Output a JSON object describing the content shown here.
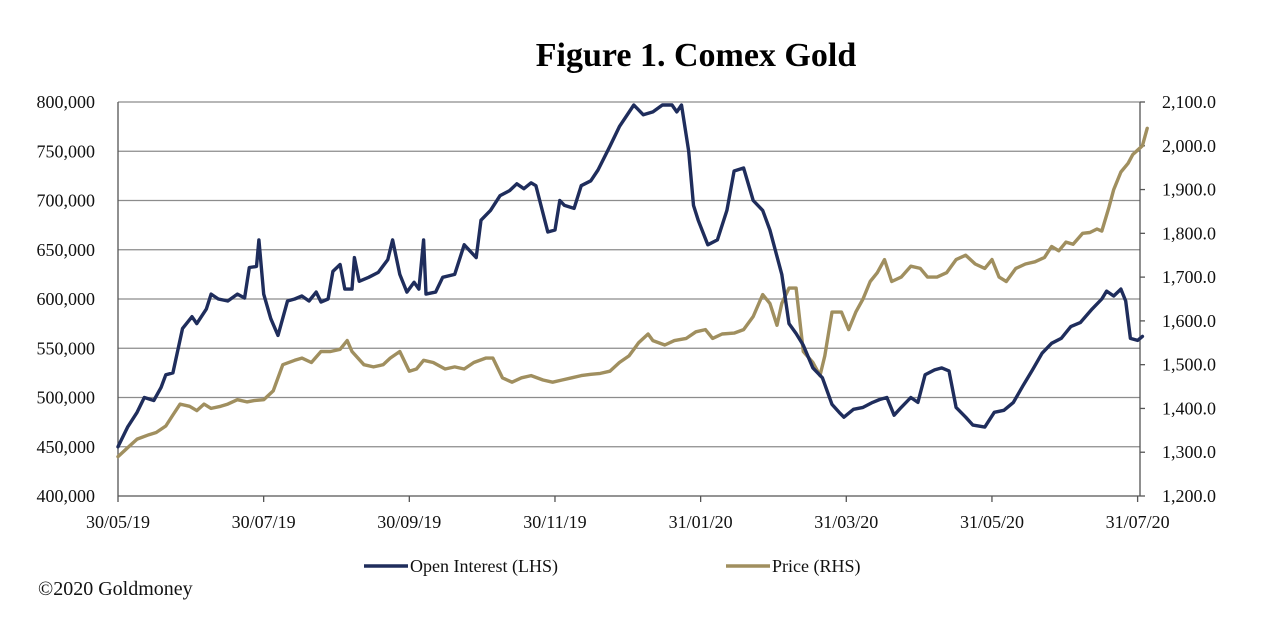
{
  "chart_data": {
    "type": "line",
    "title": "Figure 1. Comex Gold",
    "copyright": "©2020 Goldmoney",
    "grid": true,
    "legend_position": "bottom",
    "x_ticks": [
      "30/05/19",
      "30/07/19",
      "30/09/19",
      "30/11/19",
      "31/01/20",
      "31/03/20",
      "31/05/20",
      "31/07/20"
    ],
    "y_left": {
      "min": 400000,
      "max": 800000,
      "ticks": [
        "400,000",
        "450,000",
        "500,000",
        "550,000",
        "600,000",
        "650,000",
        "700,000",
        "750,000",
        "800,000"
      ]
    },
    "y_right": {
      "min": 1200,
      "max": 2100,
      "ticks": [
        "1,200.0",
        "1,300.0",
        "1,400.0",
        "1,500.0",
        "1,600.0",
        "1,700.0",
        "1,800.0",
        "1,900.0",
        "2,000.0",
        "2,100.0"
      ]
    },
    "series": [
      {
        "name": "Open Interest (LHS)",
        "axis": "left",
        "color": "#1f2d5c",
        "points": [
          [
            "2019-05-30",
            450000
          ],
          [
            "2019-06-03",
            470000
          ],
          [
            "2019-06-07",
            485000
          ],
          [
            "2019-06-10",
            500000
          ],
          [
            "2019-06-14",
            497000
          ],
          [
            "2019-06-17",
            510000
          ],
          [
            "2019-06-19",
            523000
          ],
          [
            "2019-06-22",
            525000
          ],
          [
            "2019-06-26",
            570000
          ],
          [
            "2019-06-30",
            582000
          ],
          [
            "2019-07-02",
            575000
          ],
          [
            "2019-07-06",
            590000
          ],
          [
            "2019-07-08",
            605000
          ],
          [
            "2019-07-11",
            600000
          ],
          [
            "2019-07-15",
            598000
          ],
          [
            "2019-07-19",
            605000
          ],
          [
            "2019-07-22",
            601000
          ],
          [
            "2019-07-24",
            632000
          ],
          [
            "2019-07-27",
            633000
          ],
          [
            "2019-07-28",
            660000
          ],
          [
            "2019-07-30",
            605000
          ],
          [
            "2019-08-02",
            580000
          ],
          [
            "2019-08-05",
            563000
          ],
          [
            "2019-08-09",
            598000
          ],
          [
            "2019-08-12",
            600000
          ],
          [
            "2019-08-15",
            603000
          ],
          [
            "2019-08-18",
            598000
          ],
          [
            "2019-08-21",
            607000
          ],
          [
            "2019-08-23",
            597000
          ],
          [
            "2019-08-26",
            600000
          ],
          [
            "2019-08-28",
            628000
          ],
          [
            "2019-08-31",
            635000
          ],
          [
            "2019-09-02",
            610000
          ],
          [
            "2019-09-05",
            610000
          ],
          [
            "2019-09-06",
            642000
          ],
          [
            "2019-09-08",
            618000
          ],
          [
            "2019-09-12",
            622000
          ],
          [
            "2019-09-16",
            627000
          ],
          [
            "2019-09-20",
            640000
          ],
          [
            "2019-09-22",
            660000
          ],
          [
            "2019-09-25",
            625000
          ],
          [
            "2019-09-28",
            607000
          ],
          [
            "2019-10-01",
            617000
          ],
          [
            "2019-10-03",
            610000
          ],
          [
            "2019-10-05",
            660000
          ],
          [
            "2019-10-06",
            605000
          ],
          [
            "2019-10-10",
            607000
          ],
          [
            "2019-10-13",
            622000
          ],
          [
            "2019-10-18",
            625000
          ],
          [
            "2019-10-22",
            655000
          ],
          [
            "2019-10-27",
            642000
          ],
          [
            "2019-10-29",
            680000
          ],
          [
            "2019-11-02",
            690000
          ],
          [
            "2019-11-06",
            705000
          ],
          [
            "2019-11-10",
            710000
          ],
          [
            "2019-11-13",
            717000
          ],
          [
            "2019-11-16",
            712000
          ],
          [
            "2019-11-19",
            718000
          ],
          [
            "2019-11-21",
            715000
          ],
          [
            "2019-11-26",
            668000
          ],
          [
            "2019-11-29",
            670000
          ],
          [
            "2019-12-01",
            700000
          ],
          [
            "2019-12-03",
            695000
          ],
          [
            "2019-12-07",
            692000
          ],
          [
            "2019-12-10",
            715000
          ],
          [
            "2019-12-14",
            720000
          ],
          [
            "2019-12-17",
            731000
          ],
          [
            "2019-12-22",
            755000
          ],
          [
            "2019-12-26",
            775000
          ],
          [
            "2020-01-01",
            797000
          ],
          [
            "2020-01-05",
            787000
          ],
          [
            "2020-01-09",
            790000
          ],
          [
            "2020-01-13",
            797000
          ],
          [
            "2020-01-17",
            797000
          ],
          [
            "2020-01-19",
            790000
          ],
          [
            "2020-01-21",
            797000
          ],
          [
            "2020-01-24",
            750000
          ],
          [
            "2020-01-26",
            695000
          ],
          [
            "2020-01-28",
            680000
          ],
          [
            "2020-02-01",
            655000
          ],
          [
            "2020-02-05",
            660000
          ],
          [
            "2020-02-09",
            690000
          ],
          [
            "2020-02-12",
            730000
          ],
          [
            "2020-02-16",
            733000
          ],
          [
            "2020-02-20",
            700000
          ],
          [
            "2020-02-24",
            690000
          ],
          [
            "2020-02-27",
            670000
          ],
          [
            "2020-03-03",
            625000
          ],
          [
            "2020-03-06",
            575000
          ],
          [
            "2020-03-09",
            565000
          ],
          [
            "2020-03-12",
            553000
          ],
          [
            "2020-03-16",
            530000
          ],
          [
            "2020-03-20",
            520000
          ],
          [
            "2020-03-24",
            493000
          ],
          [
            "2020-03-27",
            485000
          ],
          [
            "2020-03-29",
            480000
          ],
          [
            "2020-04-02",
            488000
          ],
          [
            "2020-04-06",
            490000
          ],
          [
            "2020-04-10",
            495000
          ],
          [
            "2020-04-13",
            498000
          ],
          [
            "2020-04-16",
            500000
          ],
          [
            "2020-04-19",
            482000
          ],
          [
            "2020-04-22",
            490000
          ],
          [
            "2020-04-26",
            500000
          ],
          [
            "2020-04-29",
            495000
          ],
          [
            "2020-05-02",
            523000
          ],
          [
            "2020-05-06",
            528000
          ],
          [
            "2020-05-09",
            530000
          ],
          [
            "2020-05-12",
            527000
          ],
          [
            "2020-05-15",
            490000
          ],
          [
            "2020-05-19",
            480000
          ],
          [
            "2020-05-22",
            472000
          ],
          [
            "2020-05-27",
            470000
          ],
          [
            "2020-05-31",
            485000
          ],
          [
            "2020-06-04",
            487000
          ],
          [
            "2020-06-08",
            495000
          ],
          [
            "2020-06-12",
            512000
          ],
          [
            "2020-06-16",
            528000
          ],
          [
            "2020-06-20",
            545000
          ],
          [
            "2020-06-24",
            555000
          ],
          [
            "2020-06-28",
            560000
          ],
          [
            "2020-07-02",
            572000
          ],
          [
            "2020-07-06",
            576000
          ],
          [
            "2020-07-11",
            590000
          ],
          [
            "2020-07-15",
            600000
          ],
          [
            "2020-07-17",
            608000
          ],
          [
            "2020-07-20",
            603000
          ],
          [
            "2020-07-23",
            610000
          ],
          [
            "2020-07-25",
            598000
          ],
          [
            "2020-07-27",
            560000
          ],
          [
            "2020-07-30",
            558000
          ],
          [
            "2020-08-01",
            562000
          ]
        ]
      },
      {
        "name": "Price (RHS)",
        "axis": "right",
        "color": "#a08f5f",
        "points": [
          [
            "2019-05-30",
            1290
          ],
          [
            "2019-06-03",
            1310
          ],
          [
            "2019-06-07",
            1330
          ],
          [
            "2019-06-12",
            1340
          ],
          [
            "2019-06-15",
            1345
          ],
          [
            "2019-06-19",
            1360
          ],
          [
            "2019-06-22",
            1385
          ],
          [
            "2019-06-25",
            1410
          ],
          [
            "2019-06-29",
            1405
          ],
          [
            "2019-07-02",
            1395
          ],
          [
            "2019-07-05",
            1410
          ],
          [
            "2019-07-08",
            1400
          ],
          [
            "2019-07-12",
            1405
          ],
          [
            "2019-07-15",
            1410
          ],
          [
            "2019-07-19",
            1420
          ],
          [
            "2019-07-23",
            1415
          ],
          [
            "2019-07-26",
            1418
          ],
          [
            "2019-07-30",
            1420
          ],
          [
            "2019-08-03",
            1440
          ],
          [
            "2019-08-07",
            1500
          ],
          [
            "2019-08-12",
            1510
          ],
          [
            "2019-08-15",
            1515
          ],
          [
            "2019-08-19",
            1505
          ],
          [
            "2019-08-23",
            1530
          ],
          [
            "2019-08-27",
            1530
          ],
          [
            "2019-08-31",
            1535
          ],
          [
            "2019-09-03",
            1555
          ],
          [
            "2019-09-05",
            1530
          ],
          [
            "2019-09-10",
            1500
          ],
          [
            "2019-09-14",
            1495
          ],
          [
            "2019-09-18",
            1500
          ],
          [
            "2019-09-21",
            1515
          ],
          [
            "2019-09-25",
            1530
          ],
          [
            "2019-09-29",
            1485
          ],
          [
            "2019-10-02",
            1490
          ],
          [
            "2019-10-05",
            1510
          ],
          [
            "2019-10-09",
            1505
          ],
          [
            "2019-10-14",
            1490
          ],
          [
            "2019-10-18",
            1495
          ],
          [
            "2019-10-22",
            1490
          ],
          [
            "2019-10-26",
            1505
          ],
          [
            "2019-10-31",
            1515
          ],
          [
            "2019-11-03",
            1515
          ],
          [
            "2019-11-07",
            1470
          ],
          [
            "2019-11-11",
            1460
          ],
          [
            "2019-11-15",
            1470
          ],
          [
            "2019-11-19",
            1475
          ],
          [
            "2019-11-24",
            1465
          ],
          [
            "2019-11-28",
            1460
          ],
          [
            "2019-12-02",
            1465
          ],
          [
            "2019-12-06",
            1470
          ],
          [
            "2019-12-10",
            1475
          ],
          [
            "2019-12-14",
            1478
          ],
          [
            "2019-12-18",
            1480
          ],
          [
            "2019-12-22",
            1485
          ],
          [
            "2019-12-26",
            1505
          ],
          [
            "2019-12-30",
            1520
          ],
          [
            "2020-01-03",
            1550
          ],
          [
            "2020-01-07",
            1570
          ],
          [
            "2020-01-09",
            1555
          ],
          [
            "2020-01-14",
            1545
          ],
          [
            "2020-01-18",
            1555
          ],
          [
            "2020-01-23",
            1560
          ],
          [
            "2020-01-27",
            1575
          ],
          [
            "2020-01-31",
            1580
          ],
          [
            "2020-02-03",
            1560
          ],
          [
            "2020-02-07",
            1570
          ],
          [
            "2020-02-12",
            1572
          ],
          [
            "2020-02-16",
            1580
          ],
          [
            "2020-02-20",
            1610
          ],
          [
            "2020-02-24",
            1660
          ],
          [
            "2020-02-27",
            1640
          ],
          [
            "2020-03-01",
            1590
          ],
          [
            "2020-03-03",
            1640
          ],
          [
            "2020-03-06",
            1675
          ],
          [
            "2020-03-09",
            1675
          ],
          [
            "2020-03-12",
            1530
          ],
          [
            "2020-03-16",
            1505
          ],
          [
            "2020-03-19",
            1475
          ],
          [
            "2020-03-21",
            1520
          ],
          [
            "2020-03-24",
            1620
          ],
          [
            "2020-03-28",
            1620
          ],
          [
            "2020-03-31",
            1580
          ],
          [
            "2020-04-03",
            1620
          ],
          [
            "2020-04-06",
            1650
          ],
          [
            "2020-04-09",
            1690
          ],
          [
            "2020-04-12",
            1710
          ],
          [
            "2020-04-15",
            1740
          ],
          [
            "2020-04-18",
            1690
          ],
          [
            "2020-04-22",
            1700
          ],
          [
            "2020-04-26",
            1725
          ],
          [
            "2020-04-30",
            1720
          ],
          [
            "2020-05-03",
            1700
          ],
          [
            "2020-05-07",
            1700
          ],
          [
            "2020-05-11",
            1710
          ],
          [
            "2020-05-15",
            1740
          ],
          [
            "2020-05-19",
            1750
          ],
          [
            "2020-05-23",
            1730
          ],
          [
            "2020-05-27",
            1720
          ],
          [
            "2020-05-30",
            1740
          ],
          [
            "2020-06-02",
            1700
          ],
          [
            "2020-06-05",
            1690
          ],
          [
            "2020-06-09",
            1720
          ],
          [
            "2020-06-13",
            1730
          ],
          [
            "2020-06-17",
            1735
          ],
          [
            "2020-06-21",
            1745
          ],
          [
            "2020-06-24",
            1770
          ],
          [
            "2020-06-27",
            1760
          ],
          [
            "2020-06-30",
            1780
          ],
          [
            "2020-07-03",
            1775
          ],
          [
            "2020-07-07",
            1800
          ],
          [
            "2020-07-10",
            1802
          ],
          [
            "2020-07-13",
            1810
          ],
          [
            "2020-07-15",
            1805
          ],
          [
            "2020-07-18",
            1860
          ],
          [
            "2020-07-20",
            1900
          ],
          [
            "2020-07-23",
            1940
          ],
          [
            "2020-07-26",
            1960
          ],
          [
            "2020-07-28",
            1980
          ],
          [
            "2020-07-30",
            1990
          ],
          [
            "2020-08-01",
            2000
          ],
          [
            "2020-08-03",
            2040
          ]
        ]
      }
    ]
  }
}
